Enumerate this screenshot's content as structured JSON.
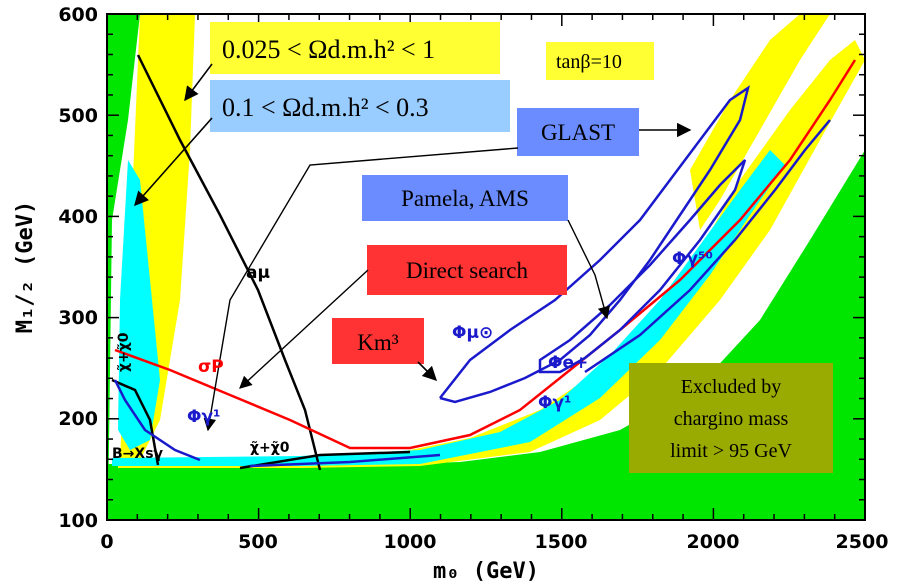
{
  "chart_data": {
    "type": "contour",
    "xlabel": "m₀ (GeV)",
    "ylabel": "M₁/₂ (GeV)",
    "xlim": [
      0,
      2500
    ],
    "ylim": [
      100,
      600
    ],
    "xticks": [
      "0",
      "500",
      "1000",
      "1500",
      "2000",
      "2500"
    ],
    "yticks": [
      "100",
      "200",
      "300",
      "400",
      "500",
      "600"
    ],
    "annotation_tanb": "tanβ=10",
    "legend_yellow": "0.025 < Ωd.m.h² < 1",
    "legend_cyan": "0.1 < Ωd.m.h² < 0.3",
    "box_glast": "GLAST",
    "box_pamela": "Pamela, AMS",
    "box_direct": "Direct search",
    "box_km3": "Km³",
    "excluded_line1": "Excluded by",
    "excluded_line2": "chargino mass",
    "excluded_line3": "limit > 95 GeV",
    "labels": {
      "a_mu": "aμ",
      "sigma_p": "σP",
      "phi_gamma_1_left": "Φγ¹",
      "phi_gamma_1_right": "Φγ¹",
      "phi_mu": "Φμ⊙",
      "phi_e": "Φe+",
      "phi_gamma_50": "Φγ⁵⁰",
      "b_to_xs_gamma": "B→Xsγ",
      "chi_top": "χ̃+χ̃0",
      "chi_bottom": "χ̃+χ̃0"
    },
    "colors": {
      "excluded": "#00e600",
      "yellow": "#ffff00",
      "cyan": "#00ffff",
      "blue_curve": "#1a1acc",
      "red_curve": "#ff0000",
      "box_yellow": "#ffff33",
      "box_lightblue": "#99ccff",
      "box_blue": "#6a8cff",
      "box_red": "#ff3333",
      "box_olive": "#99aa00"
    }
  }
}
